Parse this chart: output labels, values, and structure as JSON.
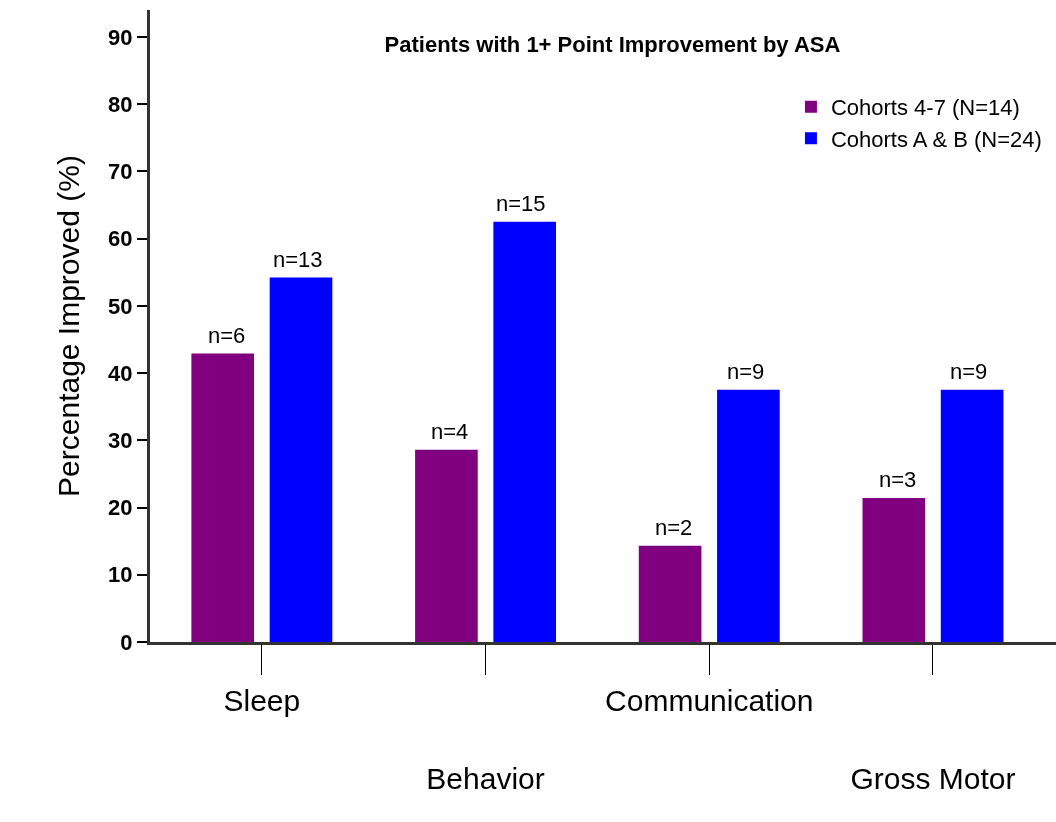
{
  "chart_data": {
    "type": "bar",
    "title": "Patients with 1+ Point Improvement by ASA",
    "ylabel": "Percentage Improved (%)",
    "categories": [
      "Sleep",
      "Behavior",
      "Communication",
      "Gross Motor"
    ],
    "series": [
      {
        "name": "Cohorts 4-7 (N=14)",
        "color": "#800080",
        "values": [
          42.9,
          28.6,
          14.3,
          21.4
        ]
      },
      {
        "name": "Cohorts A & B (N=24)",
        "color": "#0000ff",
        "values": [
          54.2,
          62.5,
          37.5,
          37.5
        ]
      }
    ],
    "annotations": [
      "n=6",
      "n=4",
      "n=2",
      "n=3",
      "n=13",
      "n=15",
      "n=9",
      "n=9"
    ],
    "ylim": [
      0,
      94
    ],
    "yticks": [
      0,
      10,
      20,
      30,
      40,
      50,
      60,
      70,
      80,
      90
    ],
    "grid": false,
    "legend": "top right"
  }
}
